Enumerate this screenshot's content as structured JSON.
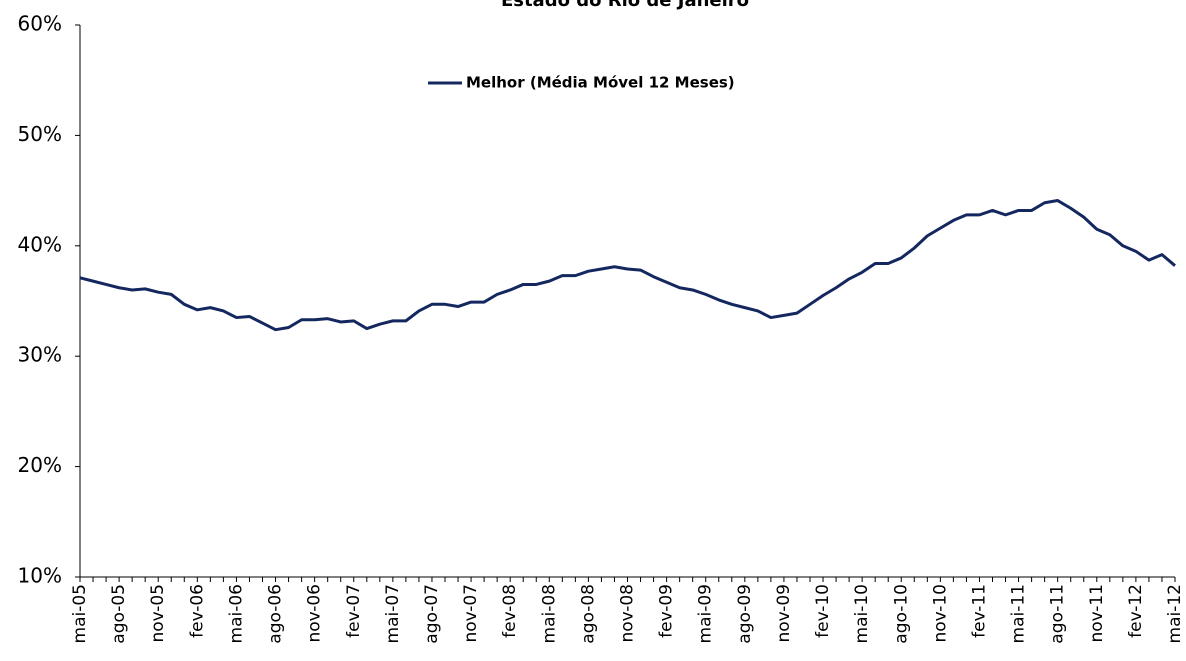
{
  "chart_data": {
    "type": "line",
    "title": "Estado do Rio de Janeiro",
    "categories": [
      "mai-05",
      null,
      null,
      "ago-05",
      null,
      null,
      "nov-05",
      null,
      null,
      "fev-06",
      null,
      null,
      "mai-06",
      null,
      null,
      "ago-06",
      null,
      null,
      "nov-06",
      null,
      null,
      "fev-07",
      null,
      null,
      "mai-07",
      null,
      null,
      "ago-07",
      null,
      null,
      "nov-07",
      null,
      null,
      "fev-08",
      null,
      null,
      "mai-08",
      null,
      null,
      "ago-08",
      null,
      null,
      "nov-08",
      null,
      null,
      "fev-09",
      null,
      null,
      "mai-09",
      null,
      null,
      "ago-09",
      null,
      null,
      "nov-09",
      null,
      null,
      "fev-10",
      null,
      null,
      "mai-10",
      null,
      null,
      "ago-10",
      null,
      null,
      "nov-10",
      null,
      null,
      "fev-11",
      null,
      null,
      "mai-11",
      null,
      null,
      "ago-11",
      null,
      null,
      "nov-11",
      null,
      null,
      "fev-12",
      null,
      null,
      "mai-12"
    ],
    "series": [
      {
        "name": "Melhor (Média Móvel 12 Meses)",
        "color": "#14285f",
        "values": [
          37.1,
          36.8,
          36.5,
          36.2,
          36.0,
          36.1,
          35.8,
          35.6,
          34.7,
          34.2,
          34.4,
          34.1,
          33.5,
          33.6,
          33.0,
          32.4,
          32.6,
          33.3,
          33.3,
          33.4,
          33.1,
          33.2,
          32.5,
          32.9,
          33.2,
          33.2,
          34.1,
          34.7,
          34.7,
          34.5,
          34.9,
          34.9,
          35.6,
          36.0,
          36.5,
          36.5,
          36.8,
          37.3,
          37.3,
          37.7,
          37.9,
          38.1,
          37.9,
          37.8,
          37.2,
          36.7,
          36.2,
          36.0,
          35.6,
          35.1,
          34.7,
          34.4,
          34.1,
          33.5,
          33.7,
          33.9,
          34.7,
          35.5,
          36.2,
          37.0,
          37.6,
          38.4,
          38.4,
          38.9,
          39.8,
          40.9,
          41.6,
          42.3,
          42.8,
          42.8,
          43.2,
          42.8,
          43.2,
          43.2,
          43.9,
          44.1,
          43.4,
          42.6,
          41.5,
          41.0,
          40.0,
          39.5,
          38.7,
          39.2,
          38.2
        ]
      }
    ],
    "ylim": [
      10,
      60
    ],
    "yticks": [
      {
        "value": 10,
        "label": "10%"
      },
      {
        "value": 20,
        "label": "20%"
      },
      {
        "value": 30,
        "label": "30%"
      },
      {
        "value": 40,
        "label": "40%"
      },
      {
        "value": 50,
        "label": "50%"
      },
      {
        "value": 60,
        "label": "60%"
      }
    ],
    "grid": false
  }
}
